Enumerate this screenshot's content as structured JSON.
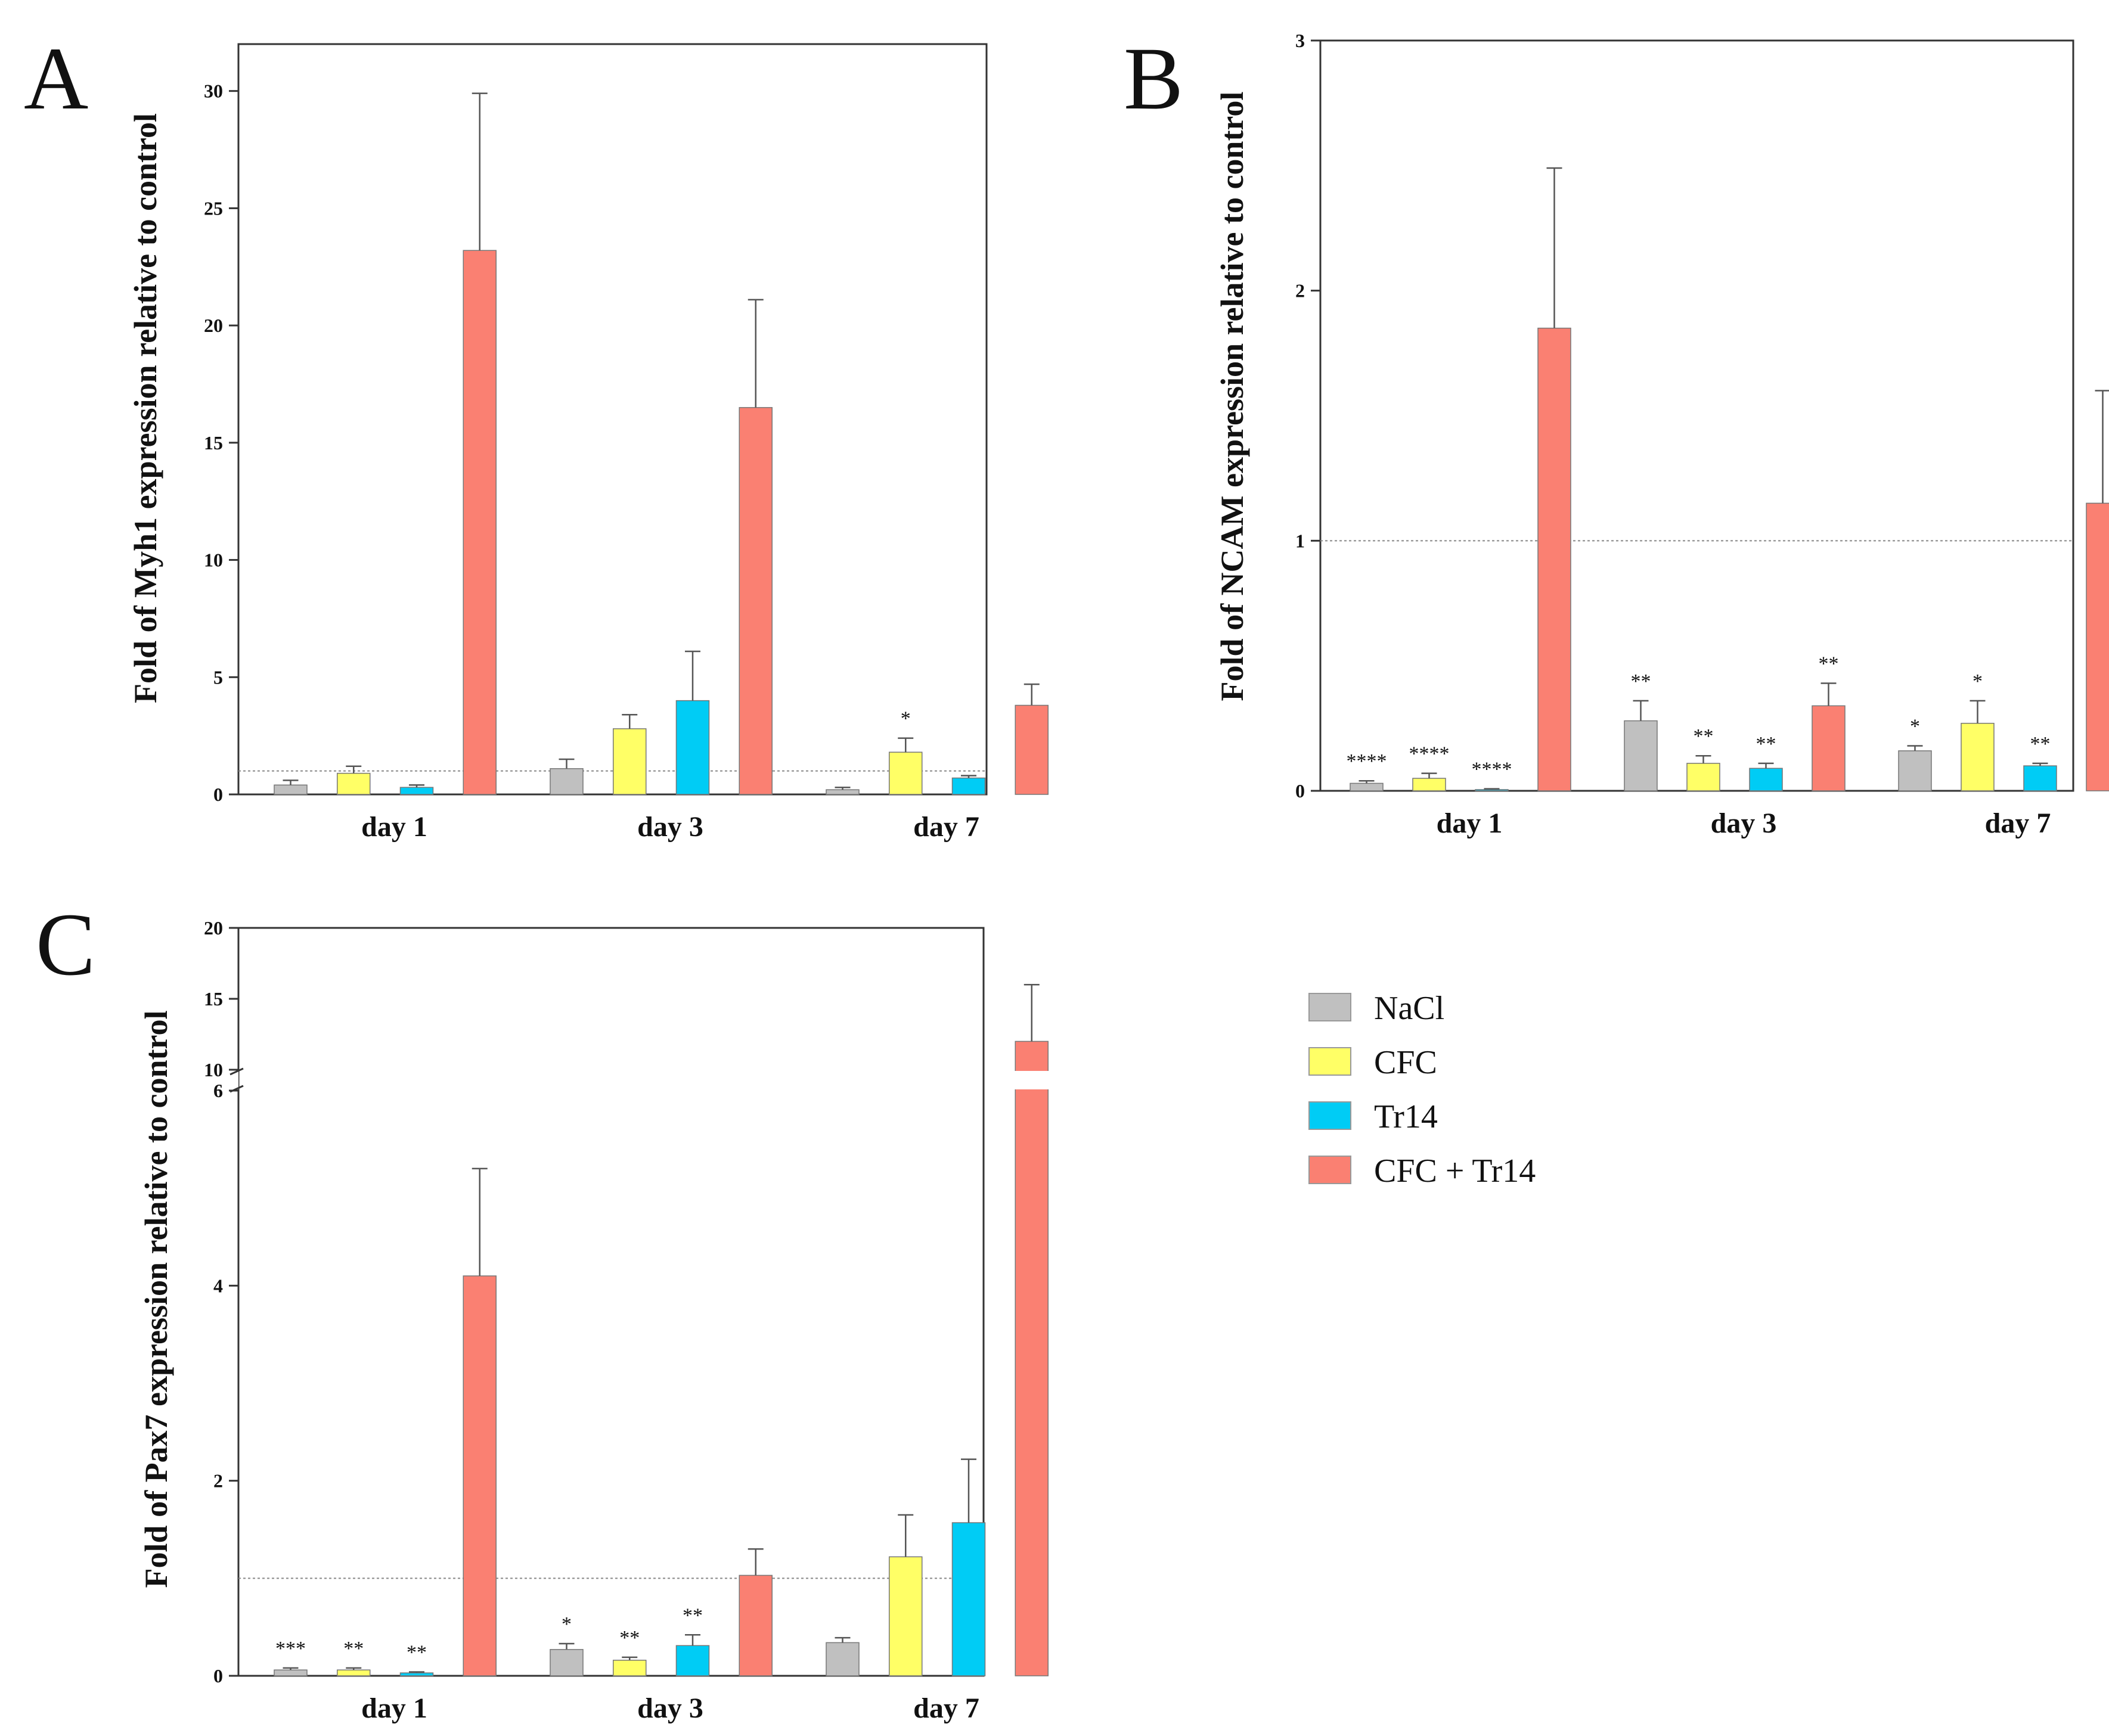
{
  "legend": [
    {
      "name": "NaCl",
      "color": "#c0c0c0"
    },
    {
      "name": "CFC",
      "color": "#ffff66"
    },
    {
      "name": "Tr14",
      "color": "#00ccf5"
    },
    {
      "name": "CFC + Tr14",
      "color": "#fa8072"
    }
  ],
  "chart_data": [
    {
      "panel": "A",
      "type": "bar",
      "ylabel": "Fold of Myh1 expression relative to control",
      "categories": [
        "day 1",
        "day 3",
        "day 7"
      ],
      "ylim": [
        0,
        32
      ],
      "yticks": [
        0,
        5,
        10,
        15,
        20,
        25,
        30
      ],
      "reference_line": 1,
      "series": [
        {
          "name": "NaCl",
          "values": [
            0.4,
            1.1,
            0.2
          ],
          "errors": [
            0.2,
            0.4,
            0.1
          ],
          "annotations": [
            "",
            "",
            ""
          ]
        },
        {
          "name": "CFC",
          "values": [
            0.9,
            2.8,
            1.8
          ],
          "errors": [
            0.3,
            0.6,
            0.6
          ],
          "annotations": [
            "",
            "",
            "*"
          ]
        },
        {
          "name": "Tr14",
          "values": [
            0.3,
            4.0,
            0.7
          ],
          "errors": [
            0.1,
            2.1,
            0.1
          ],
          "annotations": [
            "",
            "",
            ""
          ]
        },
        {
          "name": "CFC + Tr14",
          "values": [
            23.2,
            16.5,
            3.8
          ],
          "errors": [
            6.7,
            4.6,
            0.9
          ],
          "annotations": [
            "",
            "",
            ""
          ]
        }
      ]
    },
    {
      "panel": "B",
      "type": "bar",
      "ylabel": "Fold of NCAM expression relative to control",
      "categories": [
        "day 1",
        "day 3",
        "day 7"
      ],
      "ylim": [
        0,
        3
      ],
      "yticks": [
        0,
        1,
        2,
        3
      ],
      "reference_line": 1,
      "series": [
        {
          "name": "NaCl",
          "values": [
            0.03,
            0.28,
            0.16
          ],
          "errors": [
            0.01,
            0.08,
            0.02
          ],
          "annotations": [
            "****",
            "**",
            "*"
          ]
        },
        {
          "name": "CFC",
          "values": [
            0.05,
            0.11,
            0.27
          ],
          "errors": [
            0.02,
            0.03,
            0.09
          ],
          "annotations": [
            "****",
            "**",
            "*"
          ]
        },
        {
          "name": "Tr14",
          "values": [
            0.005,
            0.09,
            0.1
          ],
          "errors": [
            0.003,
            0.02,
            0.01
          ],
          "annotations": [
            "****",
            "**",
            "**"
          ]
        },
        {
          "name": "CFC + Tr14",
          "values": [
            1.85,
            0.34,
            1.15
          ],
          "errors": [
            0.64,
            0.09,
            0.45
          ],
          "annotations": [
            "",
            "**",
            ""
          ]
        }
      ]
    },
    {
      "panel": "C",
      "type": "bar",
      "ylabel": "Fold of Pax7 expression relative to control",
      "categories": [
        "day 1",
        "day 3",
        "day 7"
      ],
      "ylim": [
        0,
        20
      ],
      "axis_break": [
        6,
        10
      ],
      "yticks": [
        0,
        2,
        4,
        6,
        10,
        15,
        20
      ],
      "reference_line": 1,
      "series": [
        {
          "name": "NaCl",
          "values": [
            0.06,
            0.27,
            0.34
          ],
          "errors": [
            0.02,
            0.06,
            0.05
          ],
          "annotations": [
            "***",
            "*",
            ""
          ]
        },
        {
          "name": "CFC",
          "values": [
            0.06,
            0.16,
            1.22
          ],
          "errors": [
            0.02,
            0.03,
            0.43
          ],
          "annotations": [
            "**",
            "**",
            ""
          ]
        },
        {
          "name": "Tr14",
          "values": [
            0.03,
            0.31,
            1.57
          ],
          "errors": [
            0.01,
            0.11,
            0.65
          ],
          "annotations": [
            "**",
            "**",
            ""
          ]
        },
        {
          "name": "CFC + Tr14",
          "values": [
            4.1,
            1.03,
            12.0
          ],
          "errors": [
            1.1,
            0.27,
            4.0
          ],
          "annotations": [
            "",
            "",
            ""
          ]
        }
      ]
    }
  ]
}
